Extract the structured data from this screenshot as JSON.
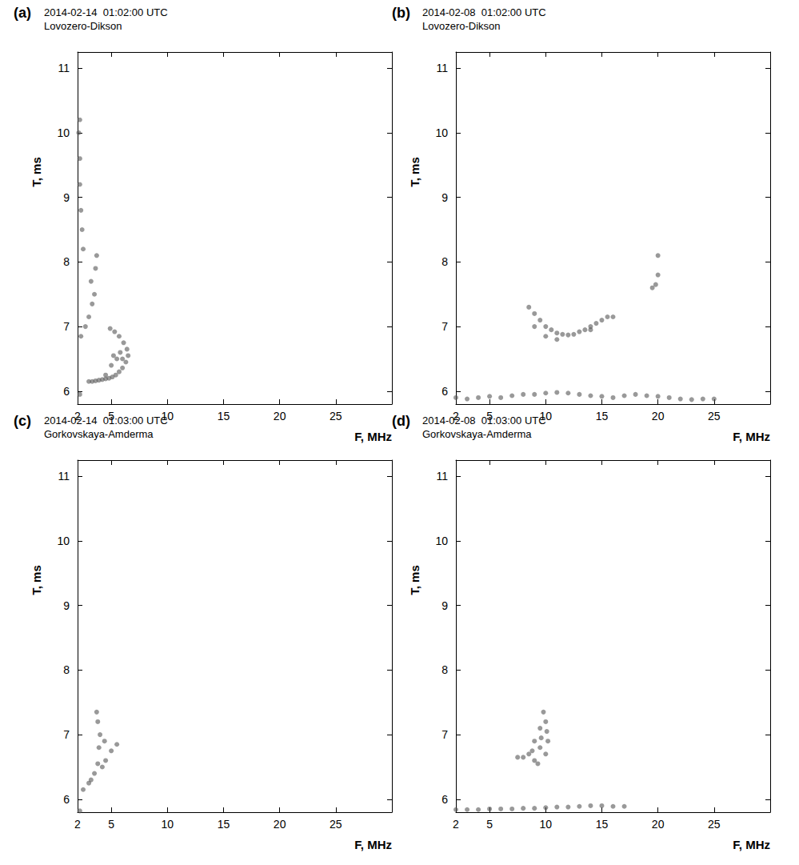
{
  "chart_data": [
    {
      "type": "scatter",
      "label": "(a)",
      "title": "2014-02-14  01:02:00 UTC",
      "subtitle": "Lovozero-Dikson",
      "xlabel": "F, MHz",
      "ylabel": "T, ms",
      "xlim": [
        2,
        30
      ],
      "ylim": [
        5.8,
        11.25
      ],
      "xticks": [
        2,
        5,
        10,
        15,
        20,
        25
      ],
      "yticks": [
        6,
        7,
        8,
        9,
        10,
        11
      ],
      "grid": false,
      "series": [
        {
          "color": "#555555",
          "marker": "circle",
          "values": [
            [
              3.0,
              6.15
            ],
            [
              3.3,
              6.15
            ],
            [
              3.6,
              6.16
            ],
            [
              3.9,
              6.17
            ],
            [
              4.2,
              6.18
            ],
            [
              4.5,
              6.19
            ],
            [
              4.8,
              6.2
            ],
            [
              5.1,
              6.22
            ],
            [
              5.4,
              6.25
            ],
            [
              5.7,
              6.3
            ],
            [
              6.0,
              6.36
            ],
            [
              6.3,
              6.45
            ],
            [
              6.5,
              6.55
            ],
            [
              6.4,
              6.65
            ],
            [
              6.1,
              6.75
            ],
            [
              5.7,
              6.85
            ],
            [
              5.3,
              6.92
            ],
            [
              4.9,
              6.97
            ],
            [
              4.5,
              6.25
            ],
            [
              5.0,
              6.4
            ],
            [
              5.5,
              6.5
            ],
            [
              6.0,
              6.5
            ],
            [
              5.8,
              6.6
            ],
            [
              5.2,
              6.55
            ],
            [
              2.3,
              6.85
            ],
            [
              2.7,
              7.0
            ],
            [
              3.0,
              7.15
            ],
            [
              3.3,
              7.35
            ],
            [
              3.5,
              7.5
            ],
            [
              3.2,
              7.7
            ],
            [
              3.6,
              7.9
            ],
            [
              3.7,
              8.1
            ],
            [
              2.5,
              8.2
            ],
            [
              2.4,
              8.5
            ],
            [
              2.3,
              8.8
            ],
            [
              2.2,
              9.2
            ],
            [
              2.2,
              9.6
            ],
            [
              2.1,
              10.0
            ],
            [
              2.2,
              10.2
            ],
            [
              2.2,
              5.95
            ]
          ]
        }
      ]
    },
    {
      "type": "scatter",
      "label": "(b)",
      "title": "2014-02-08  01:02:00 UTC",
      "subtitle": "Lovozero-Dikson",
      "xlabel": "F, MHz",
      "ylabel": "T, ms",
      "xlim": [
        2,
        30
      ],
      "ylim": [
        5.8,
        11.25
      ],
      "xticks": [
        2,
        5,
        10,
        15,
        20,
        25
      ],
      "yticks": [
        6,
        7,
        8,
        9,
        10,
        11
      ],
      "grid": false,
      "series": [
        {
          "color": "#555555",
          "marker": "circle",
          "values": [
            [
              8.5,
              7.3
            ],
            [
              9.0,
              7.2
            ],
            [
              9.5,
              7.1
            ],
            [
              10.0,
              7.0
            ],
            [
              10.5,
              6.95
            ],
            [
              11.0,
              6.9
            ],
            [
              11.5,
              6.88
            ],
            [
              12.0,
              6.87
            ],
            [
              12.5,
              6.88
            ],
            [
              13.0,
              6.92
            ],
            [
              13.5,
              6.95
            ],
            [
              14.0,
              7.0
            ],
            [
              14.5,
              7.05
            ],
            [
              15.0,
              7.1
            ],
            [
              15.5,
              7.15
            ],
            [
              16.0,
              7.15
            ],
            [
              9.0,
              7.0
            ],
            [
              10.0,
              6.85
            ],
            [
              11.0,
              6.8
            ],
            [
              14.0,
              6.95
            ],
            [
              19.5,
              7.6
            ],
            [
              19.8,
              7.65
            ],
            [
              20.0,
              7.8
            ],
            [
              20.0,
              8.1
            ],
            [
              2,
              5.9
            ],
            [
              3,
              5.88
            ],
            [
              4,
              5.9
            ],
            [
              5,
              5.92
            ],
            [
              6,
              5.9
            ],
            [
              7,
              5.93
            ],
            [
              8,
              5.95
            ],
            [
              9,
              5.95
            ],
            [
              10,
              5.97
            ],
            [
              11,
              5.98
            ],
            [
              12,
              5.97
            ],
            [
              13,
              5.95
            ],
            [
              14,
              5.93
            ],
            [
              15,
              5.92
            ],
            [
              16,
              5.9
            ],
            [
              17,
              5.93
            ],
            [
              18,
              5.95
            ],
            [
              19,
              5.93
            ],
            [
              20,
              5.92
            ],
            [
              21,
              5.9
            ],
            [
              22,
              5.88
            ],
            [
              23,
              5.87
            ],
            [
              24,
              5.88
            ],
            [
              25,
              5.88
            ]
          ]
        }
      ]
    },
    {
      "type": "scatter",
      "label": "(c)",
      "title": "2014-02-14  01:03:00 UTC",
      "subtitle": "Gorkovskaya-Amderma",
      "xlabel": "F, MHz",
      "ylabel": "T, ms",
      "xlim": [
        2,
        30
      ],
      "ylim": [
        5.8,
        11.25
      ],
      "xticks": [
        2,
        5,
        10,
        15,
        20,
        25
      ],
      "yticks": [
        6,
        7,
        8,
        9,
        10,
        11
      ],
      "grid": false,
      "series": [
        {
          "color": "#555555",
          "marker": "circle",
          "values": [
            [
              2.5,
              6.15
            ],
            [
              3.0,
              6.25
            ],
            [
              3.5,
              6.4
            ],
            [
              3.8,
              6.55
            ],
            [
              3.9,
              6.8
            ],
            [
              4.0,
              7.0
            ],
            [
              3.8,
              7.2
            ],
            [
              3.7,
              7.35
            ],
            [
              4.5,
              6.6
            ],
            [
              5.0,
              6.75
            ],
            [
              5.5,
              6.85
            ],
            [
              4.2,
              6.5
            ],
            [
              3.2,
              6.3
            ],
            [
              4.4,
              6.9
            ],
            [
              2.2,
              5.82
            ]
          ]
        }
      ]
    },
    {
      "type": "scatter",
      "label": "(d)",
      "title": "2014-02-08  01:03:00 UTC",
      "subtitle": "Gorkovskaya-Amderma",
      "xlabel": "F, MHz",
      "ylabel": "T, ms",
      "xlim": [
        2,
        30
      ],
      "ylim": [
        5.8,
        11.25
      ],
      "xticks": [
        2,
        5,
        10,
        15,
        20,
        25
      ],
      "yticks": [
        6,
        7,
        8,
        9,
        10,
        11
      ],
      "grid": false,
      "series": [
        {
          "color": "#555555",
          "marker": "circle",
          "values": [
            [
              7.5,
              6.65
            ],
            [
              8.0,
              6.65
            ],
            [
              8.5,
              6.7
            ],
            [
              9.0,
              6.6
            ],
            [
              9.0,
              6.9
            ],
            [
              9.5,
              6.8
            ],
            [
              9.5,
              7.1
            ],
            [
              10.0,
              7.2
            ],
            [
              10.0,
              6.7
            ],
            [
              9.8,
              7.35
            ],
            [
              10.2,
              6.9
            ],
            [
              9.3,
              6.55
            ],
            [
              8.8,
              6.75
            ],
            [
              9.6,
              6.95
            ],
            [
              10.1,
              7.05
            ],
            [
              2,
              5.84
            ],
            [
              3,
              5.84
            ],
            [
              4,
              5.84
            ],
            [
              5,
              5.85
            ],
            [
              6,
              5.85
            ],
            [
              7,
              5.85
            ],
            [
              8,
              5.86
            ],
            [
              9,
              5.86
            ],
            [
              10,
              5.87
            ],
            [
              11,
              5.88
            ],
            [
              12,
              5.88
            ],
            [
              13,
              5.89
            ],
            [
              14,
              5.9
            ],
            [
              15,
              5.9
            ],
            [
              16,
              5.89
            ],
            [
              17,
              5.89
            ]
          ]
        }
      ]
    }
  ]
}
